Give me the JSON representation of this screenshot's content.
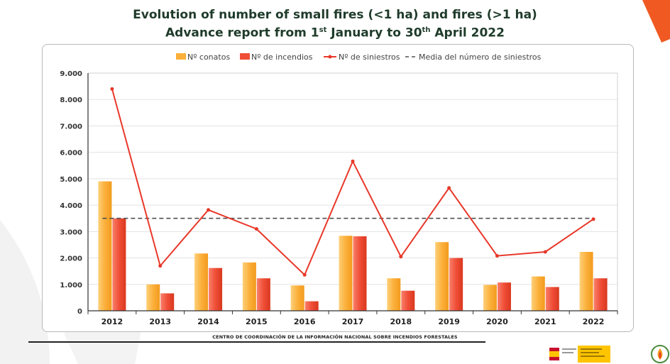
{
  "title_line1": "Evolution of number of small fires (<1 ha) and fires (>1 ha)",
  "title_line2_pre": "Advance report from 1",
  "title_line2_sup1": "st",
  "title_line2_mid": " January to 30",
  "title_line2_sup2": "th",
  "title_line2_post": " April 2022",
  "footer": "CENTRO DE COORDINACIÓN DE LA INFORMACIÓN NACIONAL SOBRE INCENDIOS FORESTALES",
  "colors": {
    "conatos": "#fbb03b",
    "incendios": "#f04e37",
    "siniestros": "#e8382a",
    "media": "#505050",
    "title": "#1f3b2a"
  },
  "chart_data": {
    "type": "bar",
    "legend_position": "top",
    "grid": true,
    "categories": [
      "2012",
      "2013",
      "2014",
      "2015",
      "2016",
      "2017",
      "2018",
      "2019",
      "2020",
      "2021",
      "2022"
    ],
    "series": [
      {
        "name": "Nº conatos",
        "type": "bar",
        "values": [
          4900,
          1000,
          2170,
          1830,
          960,
          2840,
          1230,
          2600,
          980,
          1300,
          2230
        ]
      },
      {
        "name": "Nº de incendios",
        "type": "bar",
        "values": [
          3500,
          660,
          1620,
          1230,
          360,
          2820,
          760,
          2000,
          1070,
          900,
          1230
        ]
      },
      {
        "name": "Nº de siniestros",
        "type": "line",
        "values": [
          8400,
          1700,
          3820,
          3100,
          1360,
          5660,
          2050,
          4650,
          2080,
          2230,
          3470
        ]
      },
      {
        "name": "Media del número de siniestros",
        "type": "dashed",
        "values": [
          3500,
          3500,
          3500,
          3500,
          3500,
          3500,
          3500,
          3500,
          3500,
          3500,
          3500
        ]
      }
    ],
    "ylim": [
      0,
      9000
    ],
    "yticks": [
      0,
      1000,
      2000,
      3000,
      4000,
      5000,
      6000,
      7000,
      8000,
      9000
    ],
    "ytick_labels": [
      "0",
      "1.000",
      "2.000",
      "3.000",
      "4.000",
      "5.000",
      "6.000",
      "7.000",
      "8.000",
      "9.000"
    ],
    "xlabel": "",
    "ylabel": ""
  }
}
